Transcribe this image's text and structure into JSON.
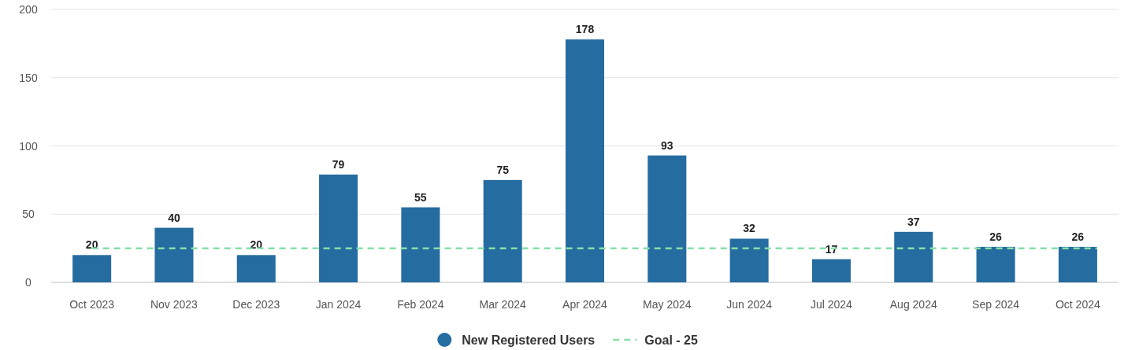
{
  "chart_data": {
    "type": "bar",
    "categories": [
      "Oct 2023",
      "Nov 2023",
      "Dec 2023",
      "Jan 2024",
      "Feb 2024",
      "Mar 2024",
      "Apr 2024",
      "May 2024",
      "Jun 2024",
      "Jul 2024",
      "Aug 2024",
      "Sep 2024",
      "Oct 2024"
    ],
    "series": [
      {
        "name": "New Registered Users",
        "color": "#256ca1",
        "values": [
          20,
          40,
          20,
          79,
          55,
          75,
          178,
          93,
          32,
          17,
          37,
          26,
          26
        ]
      }
    ],
    "ylim": [
      0,
      200
    ],
    "yticks": [
      0,
      50,
      100,
      150,
      200
    ],
    "grid": "y",
    "data_labels": true,
    "legend": "bottom",
    "ref_lines": [
      {
        "axis": "y",
        "value": 25,
        "label": "Goal - 25",
        "color": "#86dfa8",
        "line_style": "dashed"
      }
    ]
  }
}
